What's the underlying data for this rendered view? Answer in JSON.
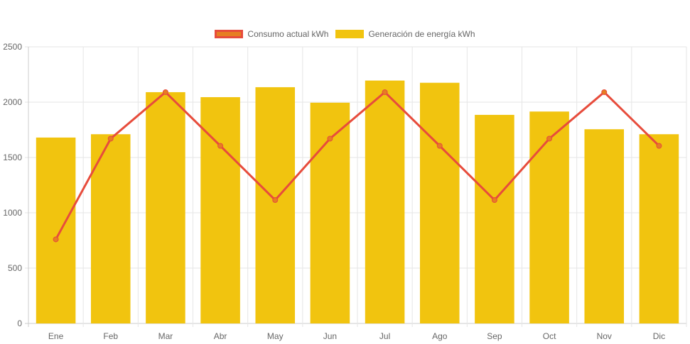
{
  "chart_data": {
    "type": "bar",
    "categories": [
      "Ene",
      "Feb",
      "Mar",
      "Abr",
      "May",
      "Jun",
      "Jul",
      "Ago",
      "Sep",
      "Oct",
      "Nov",
      "Dic"
    ],
    "ylim": [
      0,
      2500
    ],
    "yticks": [
      0,
      500,
      1000,
      1500,
      2000,
      2500
    ],
    "grid": true,
    "legend_position": "top-center",
    "series": [
      {
        "name": "Consumo actual kWh",
        "type": "line",
        "color": "#e74c3c",
        "fill_color": "#e67e22",
        "values": [
          760,
          1670,
          2090,
          1605,
          1115,
          1670,
          2090,
          1605,
          1115,
          1670,
          2090,
          1605
        ]
      },
      {
        "name": "Generación de energía kWh",
        "type": "bar",
        "color": "#f1c40f",
        "values": [
          1680,
          1710,
          2090,
          2045,
          2135,
          1995,
          2195,
          2175,
          1885,
          1915,
          1755,
          1710
        ]
      }
    ]
  }
}
